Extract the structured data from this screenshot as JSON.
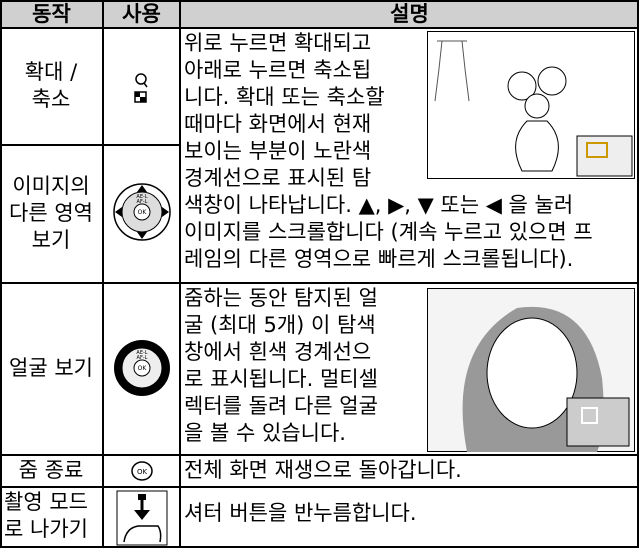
{
  "table": {
    "header": [
      "동작",
      "사용",
      "설명"
    ],
    "rows": [
      {
        "action": [
          "확대 /",
          "축소"
        ],
        "description": [
          "위로 누르면 확대되고",
          "아래로 누르면 축소됩",
          "니다. 확대 또는 축소할",
          "때마다 화면에서 현재",
          "보이는 부분이 노란색",
          "경계선으로 표시된 탐",
          "색창이 나타납니다.  ▲, ▶, ▼ 또는 ◀ 을 눌러",
          "이미지를 스크롤합니다 (계속 누르고 있으면 프",
          "레임의 다른 영역으로 빠르게 스크롤됩니다)."
        ]
      },
      {
        "action": [
          "이미지의",
          "다른 영역",
          "보기"
        ]
      },
      {
        "action": [
          "얼굴 보기"
        ],
        "description": [
          "줌하는 동안 탐지된 얼",
          "굴 (최대 5개) 이 탐색",
          "창에서 흰색 경계선으",
          "로 표시됩니다. 멀티셀",
          "렉터를 돌려 다른 얼굴",
          "을 볼 수 있습니다."
        ]
      },
      {
        "action": [
          "줌 종료"
        ],
        "description": [
          "전체 화면 재생으로 돌아갑니다."
        ]
      },
      {
        "action": [
          "촬영 모드",
          "로 나가기"
        ],
        "description": [
          "셔터 버튼을 반누름합니다."
        ]
      }
    ]
  },
  "icon_labels": {
    "ael": "AE-L",
    "afl": "AF-L",
    "ok": "OK"
  }
}
